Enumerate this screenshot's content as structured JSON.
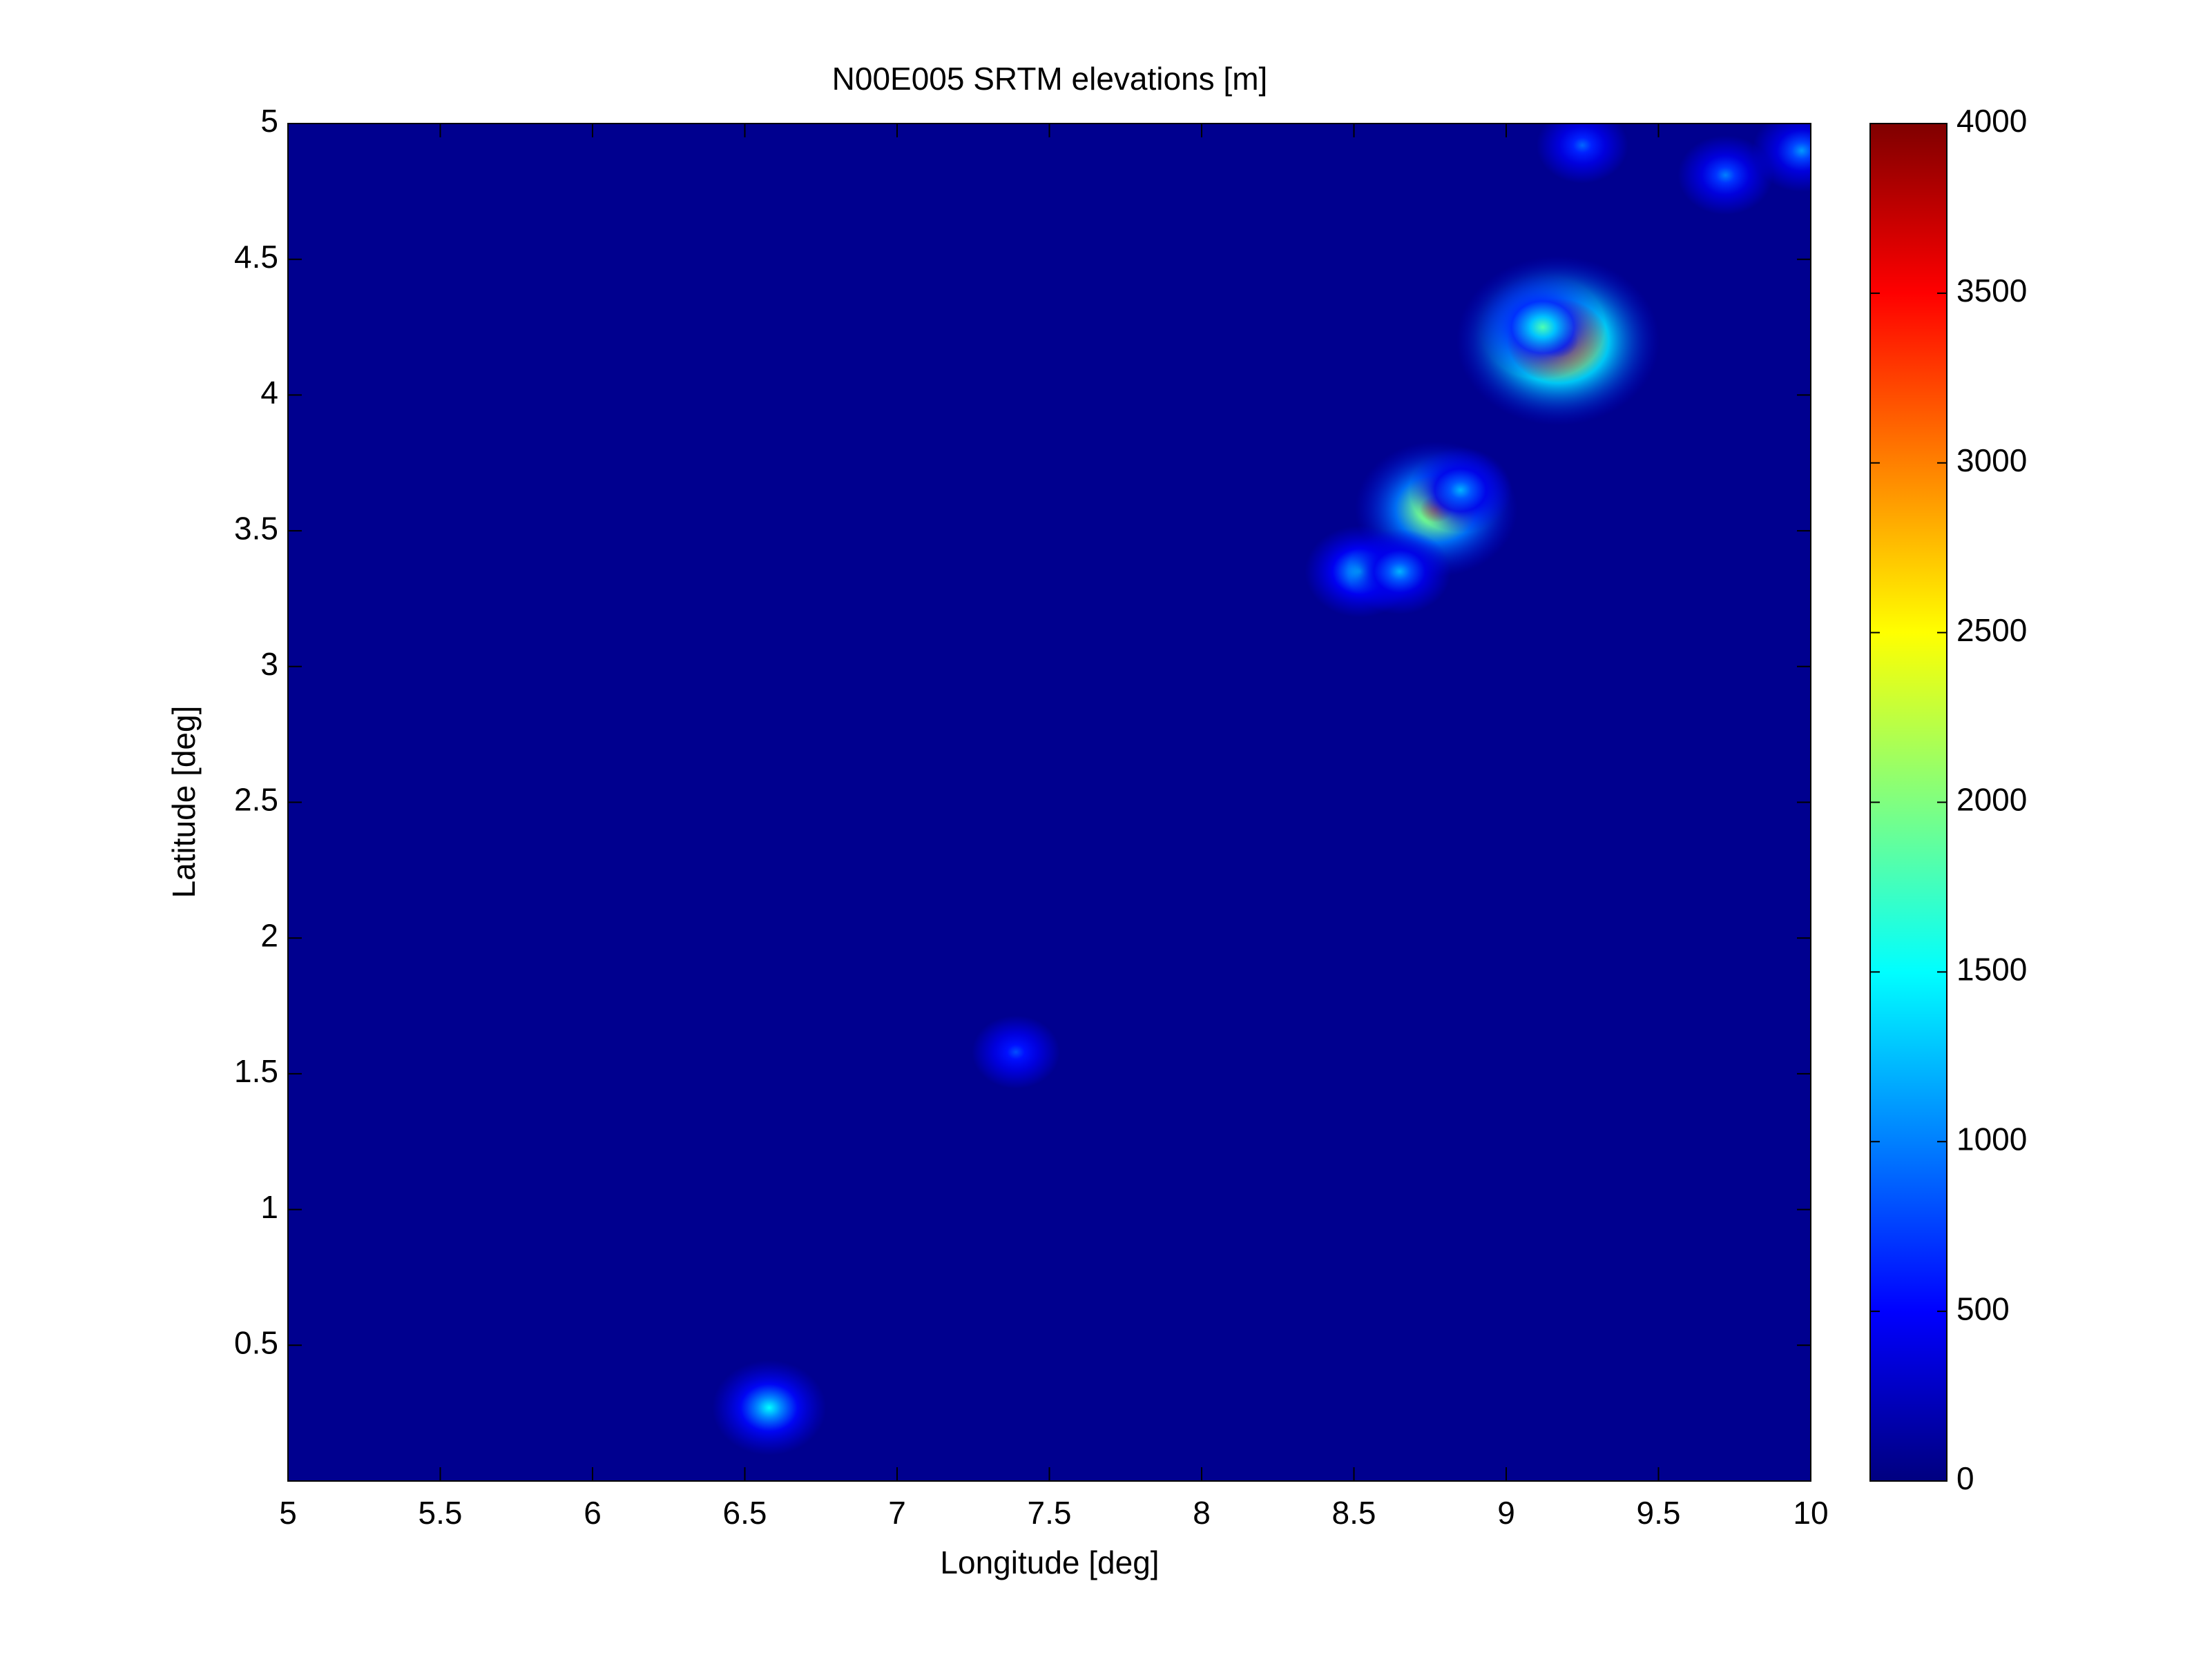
{
  "chart_data": {
    "type": "heatmap",
    "title": "N00E005 SRTM elevations [m]",
    "x_label": "Longitude [deg]",
    "y_label": "Latitude [deg]",
    "xlim": [
      5,
      10
    ],
    "ylim": [
      0,
      5
    ],
    "xticks": [
      5,
      5.5,
      6,
      6.5,
      7,
      7.5,
      8,
      8.5,
      9,
      9.5,
      10
    ],
    "yticks": [
      0.5,
      1,
      1.5,
      2,
      2.5,
      3,
      3.5,
      4,
      4.5,
      5
    ],
    "colormap": "jet",
    "clim": [
      0,
      4000
    ],
    "cticks": [
      0,
      500,
      1000,
      1500,
      2000,
      2500,
      3000,
      3500,
      4000
    ],
    "x": [
      9.17,
      9.12,
      8.77,
      8.85,
      8.52,
      8.65,
      7.39,
      6.58,
      9.25,
      9.72,
      9.97
    ],
    "y": [
      4.2,
      4.25,
      3.58,
      3.65,
      3.35,
      3.35,
      1.58,
      0.27,
      4.92,
      4.81,
      4.9
    ],
    "values": [
      3900,
      1800,
      2800,
      1200,
      1400,
      1200,
      800,
      1500,
      900,
      1000,
      1100
    ]
  }
}
